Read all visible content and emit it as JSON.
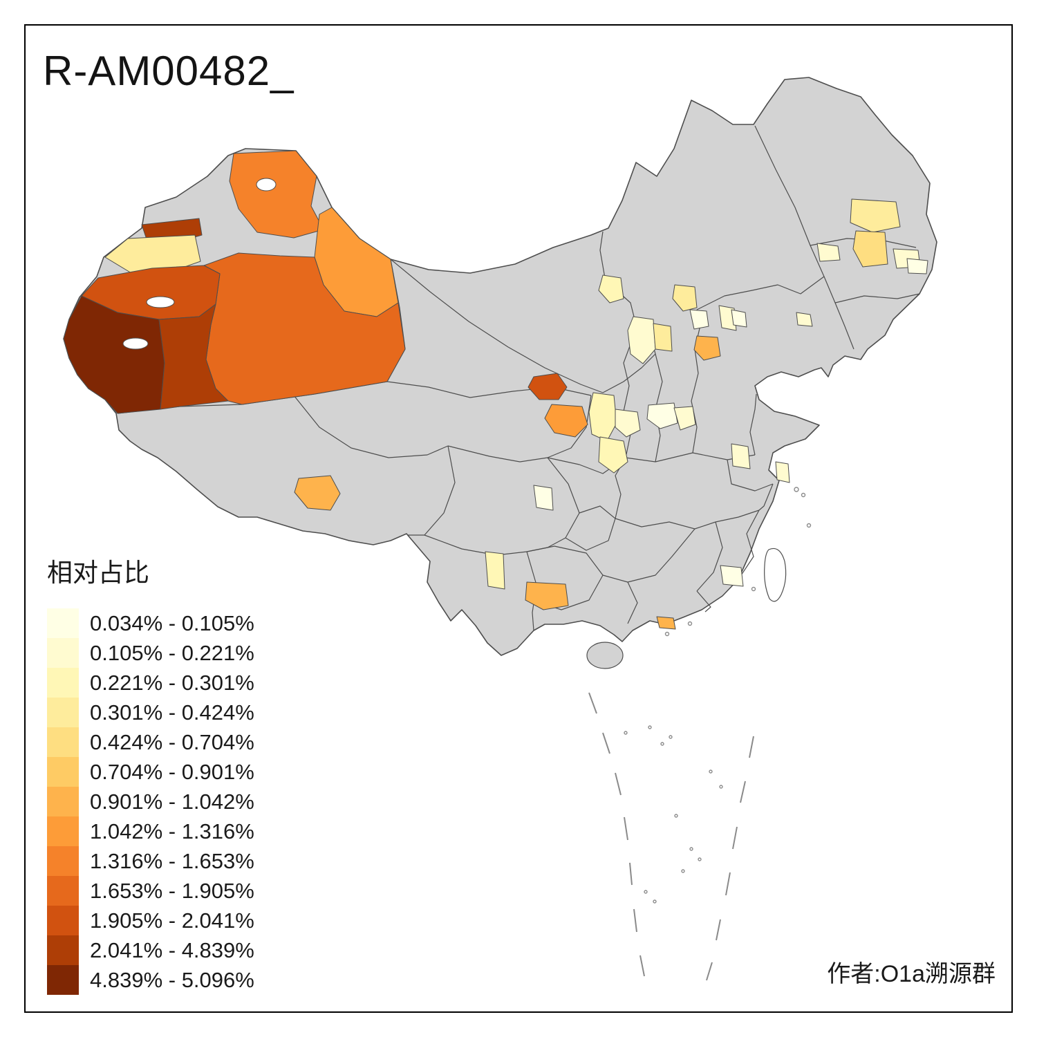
{
  "title": "R-AM00482_",
  "legend": {
    "title": "相对占比",
    "items": [
      {
        "range": "0.034% - 0.105%",
        "color": "#FFFFE5"
      },
      {
        "range": "0.105% - 0.221%",
        "color": "#FFFBD0"
      },
      {
        "range": "0.221% - 0.301%",
        "color": "#FFF7B6"
      },
      {
        "range": "0.301% - 0.424%",
        "color": "#FEEC9C"
      },
      {
        "range": "0.424% - 0.704%",
        "color": "#FEDE81"
      },
      {
        "range": "0.704% - 0.901%",
        "color": "#FECB64"
      },
      {
        "range": "0.901% - 1.042%",
        "color": "#FEB34C"
      },
      {
        "range": "1.042% - 1.316%",
        "color": "#FD9C38"
      },
      {
        "range": "1.316% - 1.653%",
        "color": "#F5822A"
      },
      {
        "range": "1.653% - 1.905%",
        "color": "#E6691C"
      },
      {
        "range": "1.905% - 2.041%",
        "color": "#D15210"
      },
      {
        "range": "2.041% - 4.839%",
        "color": "#AE3E06"
      },
      {
        "range": "4.839% - 5.096%",
        "color": "#7F2704"
      }
    ]
  },
  "attribution": "作者:O1a溯源群",
  "map": {
    "land_color": "#D3D3D3",
    "border_color": "#4D4D4D",
    "background_color": "#FFFFFF",
    "sea_mark_color": "#8A8A8A"
  }
}
